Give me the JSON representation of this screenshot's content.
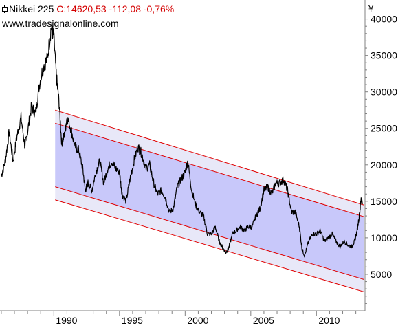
{
  "header": {
    "symbol": "Nikkei 225",
    "quote": "C:14620,53 -112,08 -0,76%",
    "source": "www.tradesignalonline.com"
  },
  "colors": {
    "price": "#000000",
    "channel_fill": "#c8c8fa",
    "band_fill": "#e8e8f8",
    "channel_line": "#e00000",
    "quote_text": "#d40000",
    "axis": "#808080"
  },
  "chart_data": {
    "type": "line",
    "title": "Nikkei 225",
    "ylabel": "¥",
    "xlim": [
      1985.9,
      2013.7
    ],
    "ylim": [
      0,
      42600
    ],
    "yticks": [
      "5000",
      "10000",
      "15000",
      "20000",
      "25000",
      "30000",
      "35000",
      "40000"
    ],
    "xticks": [
      "1990",
      "1995",
      "2000",
      "2005",
      "2010"
    ],
    "grid": false,
    "series": [
      {
        "x": [
          1986.0,
          1986.3,
          1986.6,
          1986.9,
          1987.2,
          1987.5,
          1987.8,
          1988.0,
          1988.3,
          1988.6,
          1988.9,
          1989.2,
          1989.5,
          1989.8,
          1990.0,
          1990.2,
          1990.4,
          1990.6,
          1990.8,
          1991.0,
          1991.3,
          1991.6,
          1991.9,
          1992.2,
          1992.4,
          1992.6,
          1992.9,
          1993.2,
          1993.5,
          1993.8,
          1994.1,
          1994.4,
          1994.7,
          1995.0,
          1995.2,
          1995.5,
          1995.8,
          1996.1,
          1996.4,
          1996.7,
          1997.0,
          1997.3,
          1997.6,
          1997.9,
          1998.2,
          1998.5,
          1998.8,
          1999.1,
          1999.4,
          1999.7,
          2000.0,
          2000.2,
          2000.5,
          2000.8,
          2001.1,
          2001.4,
          2001.7,
          2002.0,
          2002.3,
          2002.6,
          2002.9,
          2003.1,
          2003.3,
          2003.6,
          2003.9,
          2004.2,
          2004.5,
          2004.8,
          2005.1,
          2005.4,
          2005.7,
          2006.0,
          2006.3,
          2006.6,
          2006.9,
          2007.2,
          2007.5,
          2007.8,
          2008.1,
          2008.4,
          2008.7,
          2008.9,
          2009.1,
          2009.4,
          2009.7,
          2010.0,
          2010.3,
          2010.6,
          2010.9,
          2011.2,
          2011.5,
          2011.8,
          2012.1,
          2012.4,
          2012.7,
          2012.9,
          2013.1,
          2013.3,
          2013.4,
          2013.5
        ],
        "values": [
          18500,
          20500,
          24500,
          20500,
          24000,
          26500,
          22500,
          24500,
          28000,
          27000,
          31000,
          33500,
          34500,
          38900,
          37500,
          32000,
          28500,
          23000,
          24000,
          26500,
          25000,
          22500,
          22000,
          19500,
          16500,
          17500,
          16500,
          19000,
          20500,
          17500,
          19500,
          20500,
          19500,
          19000,
          16000,
          15000,
          18000,
          20500,
          22500,
          21500,
          19500,
          20000,
          17500,
          16000,
          16500,
          15500,
          13500,
          14000,
          17000,
          18000,
          19000,
          20500,
          16500,
          14500,
          13500,
          13000,
          10500,
          10500,
          11500,
          9500,
          8500,
          8000,
          8500,
          10500,
          11000,
          11500,
          11000,
          11500,
          11500,
          13000,
          14000,
          16500,
          17000,
          16000,
          17500,
          17500,
          18000,
          16500,
          13500,
          13500,
          11500,
          8500,
          7500,
          9500,
          10500,
          10500,
          11000,
          9500,
          10000,
          10500,
          9500,
          8800,
          9500,
          9000,
          8800,
          9500,
          11000,
          13500,
          15500,
          14620
        ]
      }
    ],
    "channel": {
      "upper_outer": {
        "x": [
          1990.1,
          2013.6
        ],
        "y": [
          27500,
          14500
        ]
      },
      "upper_inner": {
        "x": [
          1990.1,
          2013.6
        ],
        "y": [
          25700,
          12900
        ]
      },
      "lower_inner": {
        "x": [
          1990.1,
          2013.6
        ],
        "y": [
          17000,
          4300
        ]
      },
      "lower_outer": {
        "x": [
          1990.1,
          2013.6
        ],
        "y": [
          15200,
          2600
        ]
      }
    }
  }
}
